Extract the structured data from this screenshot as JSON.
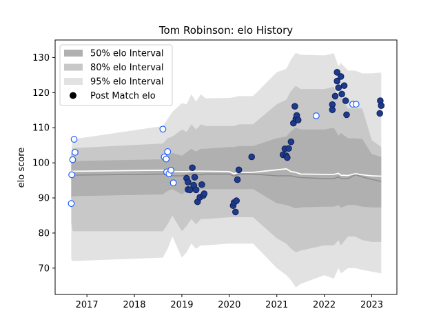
{
  "chart_data": {
    "type": "scatter",
    "title": "Tom Robinson: elo History",
    "xlabel": "",
    "ylabel": "elo score",
    "xlim": [
      2016.33,
      2023.53
    ],
    "ylim": [
      62.5,
      135
    ],
    "xticks": [
      2017,
      2018,
      2019,
      2020,
      2021,
      2022,
      2023
    ],
    "yticks": [
      70,
      80,
      90,
      100,
      110,
      120,
      130
    ],
    "grid": false,
    "legend": {
      "position": "top-left",
      "entries": [
        {
          "label": "50% elo Interval",
          "color": "#b0b0b0"
        },
        {
          "label": "80% elo Interval",
          "color": "#c8c8c8"
        },
        {
          "label": "95% elo Interval",
          "color": "#e2e2e2"
        },
        {
          "label": "Post Match elo",
          "marker": "circle",
          "color": "#000000"
        }
      ]
    },
    "colors": {
      "band50": "#b0b0b0",
      "band80": "#c8c8c8",
      "band95": "#e2e2e2",
      "median_line": "#8c8c8c",
      "mean_line": "#ffffff",
      "point_fill": "#1e3a8a",
      "point_edge": "#0f1f5c",
      "hollow_fill": "#ffffff",
      "hollow_edge": "#1e5eff"
    },
    "bands": {
      "x": [
        2016.67,
        2016.7,
        2018.6,
        2018.7,
        2018.8,
        2019.0,
        2019.1,
        2019.2,
        2019.3,
        2019.4,
        2019.5,
        2020.0,
        2020.1,
        2020.2,
        2020.5,
        2021.0,
        2021.2,
        2021.3,
        2021.4,
        2021.5,
        2022.0,
        2022.2,
        2022.3,
        2022.35,
        2022.5,
        2022.65,
        2022.8,
        2023.0,
        2023.2
      ],
      "p95_hi": [
        103,
        106.7,
        110.5,
        112.5,
        114.5,
        117,
        116.7,
        119.5,
        117.5,
        119.5,
        118.4,
        118.5,
        118.7,
        119,
        119,
        125.8,
        126.8,
        129.5,
        131.3,
        130.8,
        130.6,
        131.2,
        127.5,
        128.5,
        126.3,
        126.3,
        125.5,
        125.5,
        125.7
      ],
      "p95_lo": [
        72.5,
        72,
        73,
        75.5,
        79,
        73,
        74.5,
        77,
        75.5,
        76.5,
        76.5,
        77,
        77,
        77,
        77,
        70,
        68,
        66.5,
        64.5,
        65.5,
        68,
        67,
        70,
        68.5,
        70,
        70,
        69.5,
        69,
        68.5
      ],
      "p80_hi": [
        103,
        104.2,
        105.5,
        107,
        107.5,
        109.5,
        108.8,
        111,
        109.5,
        111,
        110.5,
        110.5,
        110.5,
        111,
        111,
        116.7,
        118,
        120.5,
        122,
        121,
        121,
        121.7,
        118,
        119,
        115.5,
        115.5,
        115.5,
        106.5,
        104.5
      ],
      "p80_lo": [
        83,
        80.5,
        80.5,
        82.5,
        85,
        80.5,
        82,
        84,
        82.5,
        84,
        84,
        84.5,
        84.5,
        84.5,
        84.5,
        78.5,
        77,
        75.5,
        74.5,
        75,
        76.5,
        76.5,
        78,
        76.5,
        79,
        79,
        78,
        77.5,
        77.5
      ],
      "p50_hi": [
        103,
        100.5,
        101,
        102,
        102.8,
        102,
        103,
        104,
        103.2,
        104,
        104,
        104.5,
        104.5,
        104.8,
        104.8,
        107,
        107.5,
        109,
        110,
        109.5,
        109.5,
        110,
        107.7,
        108.5,
        107,
        107,
        106.8,
        102.5,
        101.7
      ],
      "p50_lo": [
        90,
        90.5,
        91,
        92,
        92.5,
        91,
        92,
        92.5,
        92,
        92.5,
        92.5,
        92.5,
        92.5,
        92.5,
        92.5,
        88.5,
        88,
        87.5,
        87,
        87.3,
        87.5,
        87.5,
        88,
        87.2,
        88,
        88,
        87.5,
        87.3,
        87.3
      ],
      "median": [
        96.5,
        96.5,
        96.8,
        96.5,
        96.3,
        96.3,
        96.6,
        96.8,
        96.8,
        96.6,
        96.8,
        96.8,
        96.2,
        96.8,
        96.8,
        96.3,
        96.3,
        96.3,
        96.0,
        95.8,
        95.5,
        95.5,
        96.0,
        95.5,
        95.5,
        96.6,
        96.0,
        95.3,
        94.7
      ],
      "mean": [
        97.5,
        97.6,
        97.9,
        97.7,
        97.5,
        97.5,
        97.5,
        97.6,
        97.6,
        97.6,
        97.6,
        97.5,
        96.9,
        97.3,
        97.3,
        98.0,
        98.3,
        97.5,
        97.3,
        96.8,
        96.7,
        96.7,
        97.0,
        96.5,
        96.4,
        96.9,
        96.6,
        96.3,
        96.2
      ]
    },
    "points_filled": [
      {
        "x": 2019.1,
        "y": 95.6
      },
      {
        "x": 2019.13,
        "y": 94.5
      },
      {
        "x": 2019.13,
        "y": 92.4
      },
      {
        "x": 2019.17,
        "y": 92.3
      },
      {
        "x": 2019.22,
        "y": 98.6
      },
      {
        "x": 2019.25,
        "y": 93.6
      },
      {
        "x": 2019.27,
        "y": 95.9
      },
      {
        "x": 2019.3,
        "y": 92.3
      },
      {
        "x": 2019.33,
        "y": 88.9
      },
      {
        "x": 2019.38,
        "y": 90.2
      },
      {
        "x": 2019.42,
        "y": 93.8
      },
      {
        "x": 2019.45,
        "y": 90.7
      },
      {
        "x": 2019.47,
        "y": 91.2
      },
      {
        "x": 2020.08,
        "y": 87.8
      },
      {
        "x": 2020.1,
        "y": 88.7
      },
      {
        "x": 2020.13,
        "y": 86.0
      },
      {
        "x": 2020.15,
        "y": 89.2
      },
      {
        "x": 2020.17,
        "y": 95.2
      },
      {
        "x": 2020.2,
        "y": 98.0
      },
      {
        "x": 2020.47,
        "y": 101.7
      },
      {
        "x": 2021.13,
        "y": 102.3
      },
      {
        "x": 2021.17,
        "y": 104.0
      },
      {
        "x": 2021.2,
        "y": 102.0
      },
      {
        "x": 2021.22,
        "y": 101.5
      },
      {
        "x": 2021.25,
        "y": 104.1
      },
      {
        "x": 2021.3,
        "y": 106.0
      },
      {
        "x": 2021.35,
        "y": 111.3
      },
      {
        "x": 2021.38,
        "y": 116.1
      },
      {
        "x": 2021.4,
        "y": 112.5
      },
      {
        "x": 2021.42,
        "y": 113.5
      },
      {
        "x": 2021.45,
        "y": 112.2
      },
      {
        "x": 2022.17,
        "y": 116.6
      },
      {
        "x": 2022.17,
        "y": 115.1
      },
      {
        "x": 2022.23,
        "y": 119.0
      },
      {
        "x": 2022.27,
        "y": 125.8
      },
      {
        "x": 2022.27,
        "y": 123.3
      },
      {
        "x": 2022.3,
        "y": 121.4
      },
      {
        "x": 2022.35,
        "y": 124.6
      },
      {
        "x": 2022.37,
        "y": 119.6
      },
      {
        "x": 2022.42,
        "y": 122.0
      },
      {
        "x": 2022.45,
        "y": 117.7
      },
      {
        "x": 2022.47,
        "y": 113.7
      },
      {
        "x": 2023.17,
        "y": 114.1
      },
      {
        "x": 2023.18,
        "y": 117.7
      },
      {
        "x": 2023.2,
        "y": 116.3
      }
    ],
    "points_hollow": [
      {
        "x": 2016.67,
        "y": 88.4
      },
      {
        "x": 2016.68,
        "y": 96.6
      },
      {
        "x": 2016.7,
        "y": 100.9
      },
      {
        "x": 2016.73,
        "y": 106.7
      },
      {
        "x": 2016.75,
        "y": 103.0
      },
      {
        "x": 2018.6,
        "y": 109.6
      },
      {
        "x": 2018.63,
        "y": 101.7
      },
      {
        "x": 2018.67,
        "y": 101.1
      },
      {
        "x": 2018.68,
        "y": 97.4
      },
      {
        "x": 2018.7,
        "y": 103.2
      },
      {
        "x": 2018.73,
        "y": 96.9
      },
      {
        "x": 2018.77,
        "y": 97.9
      },
      {
        "x": 2018.82,
        "y": 94.3
      },
      {
        "x": 2021.83,
        "y": 113.4
      },
      {
        "x": 2022.6,
        "y": 116.7
      },
      {
        "x": 2022.67,
        "y": 116.7
      }
    ]
  }
}
